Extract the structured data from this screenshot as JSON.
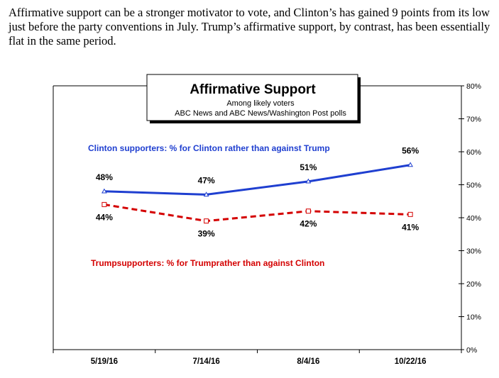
{
  "intro_text": "Affirmative support can be a stronger motivator to vote, and Clinton’s has gained 9 points from its low just before the party conventions in July. Trump’s affirmative support, by contrast, has been essentially flat in the same period.",
  "chart_data": {
    "type": "line",
    "title": "Affirmative Support",
    "subtitle": "Among likely voters",
    "source": "ABC News and ABC News/Washington  Post polls",
    "categories": [
      "5/19/16",
      "7/14/16",
      "8/4/16",
      "10/22/16"
    ],
    "y_ticks": [
      "0%",
      "10%",
      "20%",
      "30%",
      "40%",
      "50%",
      "60%",
      "70%",
      "80%"
    ],
    "ylim": [
      0,
      80
    ],
    "series": [
      {
        "name": "Clinton supporters: % for Clinton rather than against Trump",
        "values": [
          48,
          47,
          51,
          56
        ],
        "labels": [
          "48%",
          "47%",
          "51%",
          "56%"
        ],
        "color": "#1f3fd0",
        "style": "solid"
      },
      {
        "name": "Trumpsupporters: % for Trumprather than against Clinton",
        "values": [
          44,
          39,
          42,
          41
        ],
        "labels": [
          "44%",
          "39%",
          "42%",
          "41%"
        ],
        "color": "#d40000",
        "style": "dashed"
      }
    ]
  }
}
